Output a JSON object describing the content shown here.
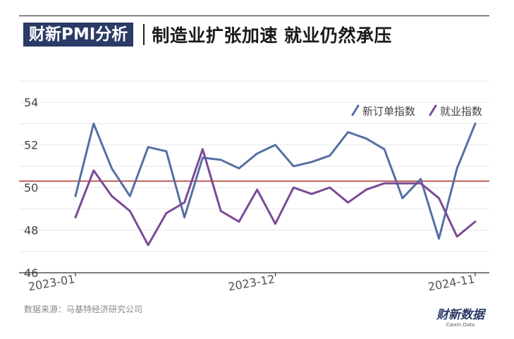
{
  "header": {
    "badge": "财新PMI分析",
    "headline": "制造业扩张加速 就业仍然承压"
  },
  "source": "数据来源：马基特经济研究公司",
  "logo": {
    "main": "财新数据",
    "sub": "Caixin Data"
  },
  "colors": {
    "new_orders": "#5470a3",
    "employment": "#7a4a94",
    "threshold": "#b0302a"
  },
  "chart_data": {
    "type": "line",
    "x": [
      "2023-01",
      "2023-02",
      "2023-03",
      "2023-04",
      "2023-05",
      "2023-06",
      "2023-07",
      "2023-08",
      "2023-09",
      "2023-10",
      "2023-11",
      "2023-12",
      "2024-01",
      "2024-02",
      "2024-03",
      "2024-04",
      "2024-05",
      "2024-06",
      "2024-07",
      "2024-08",
      "2024-09",
      "2024-10",
      "2024-11"
    ],
    "series": [
      {
        "name": "新订单指数",
        "values": [
          49.6,
          53.0,
          50.9,
          49.6,
          51.9,
          51.7,
          48.6,
          51.4,
          51.3,
          50.9,
          51.6,
          52.0,
          51.0,
          51.2,
          51.5,
          52.6,
          52.3,
          51.8,
          49.5,
          50.4,
          47.6,
          50.9,
          53.0
        ]
      },
      {
        "name": "就业指数",
        "values": [
          48.6,
          50.8,
          49.6,
          48.9,
          47.3,
          48.8,
          49.3,
          51.8,
          48.9,
          48.4,
          49.9,
          48.3,
          50.0,
          49.7,
          50.0,
          49.3,
          49.9,
          50.2,
          50.2,
          50.2,
          49.5,
          47.7,
          48.4
        ]
      }
    ],
    "threshold": 50.3,
    "ylim": [
      46,
      55
    ],
    "yticks": [
      46,
      48,
      50,
      52,
      54
    ],
    "xtick_labels": [
      {
        "index": 0,
        "label": "2023-01"
      },
      {
        "index": 11,
        "label": "2023-12"
      },
      {
        "index": 22,
        "label": "2024-11"
      }
    ],
    "legend_position": "top-right",
    "grid": true
  }
}
